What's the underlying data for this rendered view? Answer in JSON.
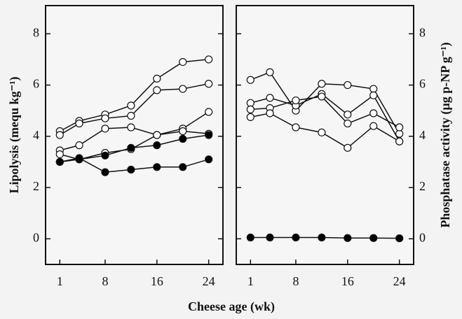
{
  "chart_data": [
    {
      "type": "line",
      "xlabel": "Cheese age (wk)",
      "ylabel": "Lipolysis (mequ kg⁻¹)",
      "x": [
        1,
        4,
        8,
        12,
        16,
        20,
        24
      ],
      "xlim": [
        -1.2,
        26.2
      ],
      "xticks": [
        1,
        8,
        16,
        24
      ],
      "ylim": [
        -1,
        9.1
      ],
      "yticks": [
        0,
        2,
        4,
        6,
        8
      ],
      "y_axis_side": "left",
      "series": [
        {
          "color": "#ffffff",
          "values": [
            4.2,
            4.6,
            4.85,
            5.2,
            6.25,
            6.9,
            7.0
          ]
        },
        {
          "color": "#ffffff",
          "values": [
            4.05,
            4.5,
            4.7,
            4.8,
            5.8,
            5.85,
            6.05
          ]
        },
        {
          "color": "#ffffff",
          "values": [
            3.45,
            3.65,
            4.3,
            4.35,
            4.05,
            4.3,
            4.95
          ]
        },
        {
          "color": "#ffffff",
          "values": [
            3.3,
            3.1,
            3.35,
            3.5,
            4.05,
            4.2,
            4.1
          ]
        },
        {
          "color": "#000000",
          "values": [
            3.0,
            3.1,
            3.25,
            3.55,
            3.65,
            3.9,
            4.05
          ]
        },
        {
          "color": "#000000",
          "values": [
            3.0,
            3.15,
            2.6,
            2.7,
            2.8,
            2.8,
            3.1
          ]
        }
      ]
    },
    {
      "type": "line",
      "ylabel": "Phosphatase activity (µg p-NP g⁻¹)",
      "x": [
        1,
        4,
        8,
        12,
        16,
        20,
        24
      ],
      "xlim": [
        -1.2,
        26.2
      ],
      "xticks": [
        1,
        8,
        16,
        24
      ],
      "ylim": [
        -1,
        9.1
      ],
      "yticks": [
        0,
        2,
        4,
        6,
        8
      ],
      "y_axis_side": "right",
      "series": [
        {
          "color": "#ffffff",
          "values": [
            6.2,
            6.5,
            5.0,
            6.05,
            6.0,
            5.85,
            4.1
          ]
        },
        {
          "color": "#ffffff",
          "values": [
            5.3,
            5.5,
            5.2,
            5.65,
            4.85,
            5.6,
            3.8
          ]
        },
        {
          "color": "#ffffff",
          "values": [
            5.05,
            5.1,
            5.4,
            5.55,
            4.5,
            4.9,
            4.35
          ]
        },
        {
          "color": "#ffffff",
          "values": [
            4.75,
            4.9,
            4.35,
            4.15,
            3.55,
            4.4,
            3.8
          ]
        },
        {
          "color": "#000000",
          "values": [
            0.05,
            0.05,
            0.05,
            0.05,
            0.03,
            0.03,
            0.02
          ]
        }
      ]
    }
  ]
}
